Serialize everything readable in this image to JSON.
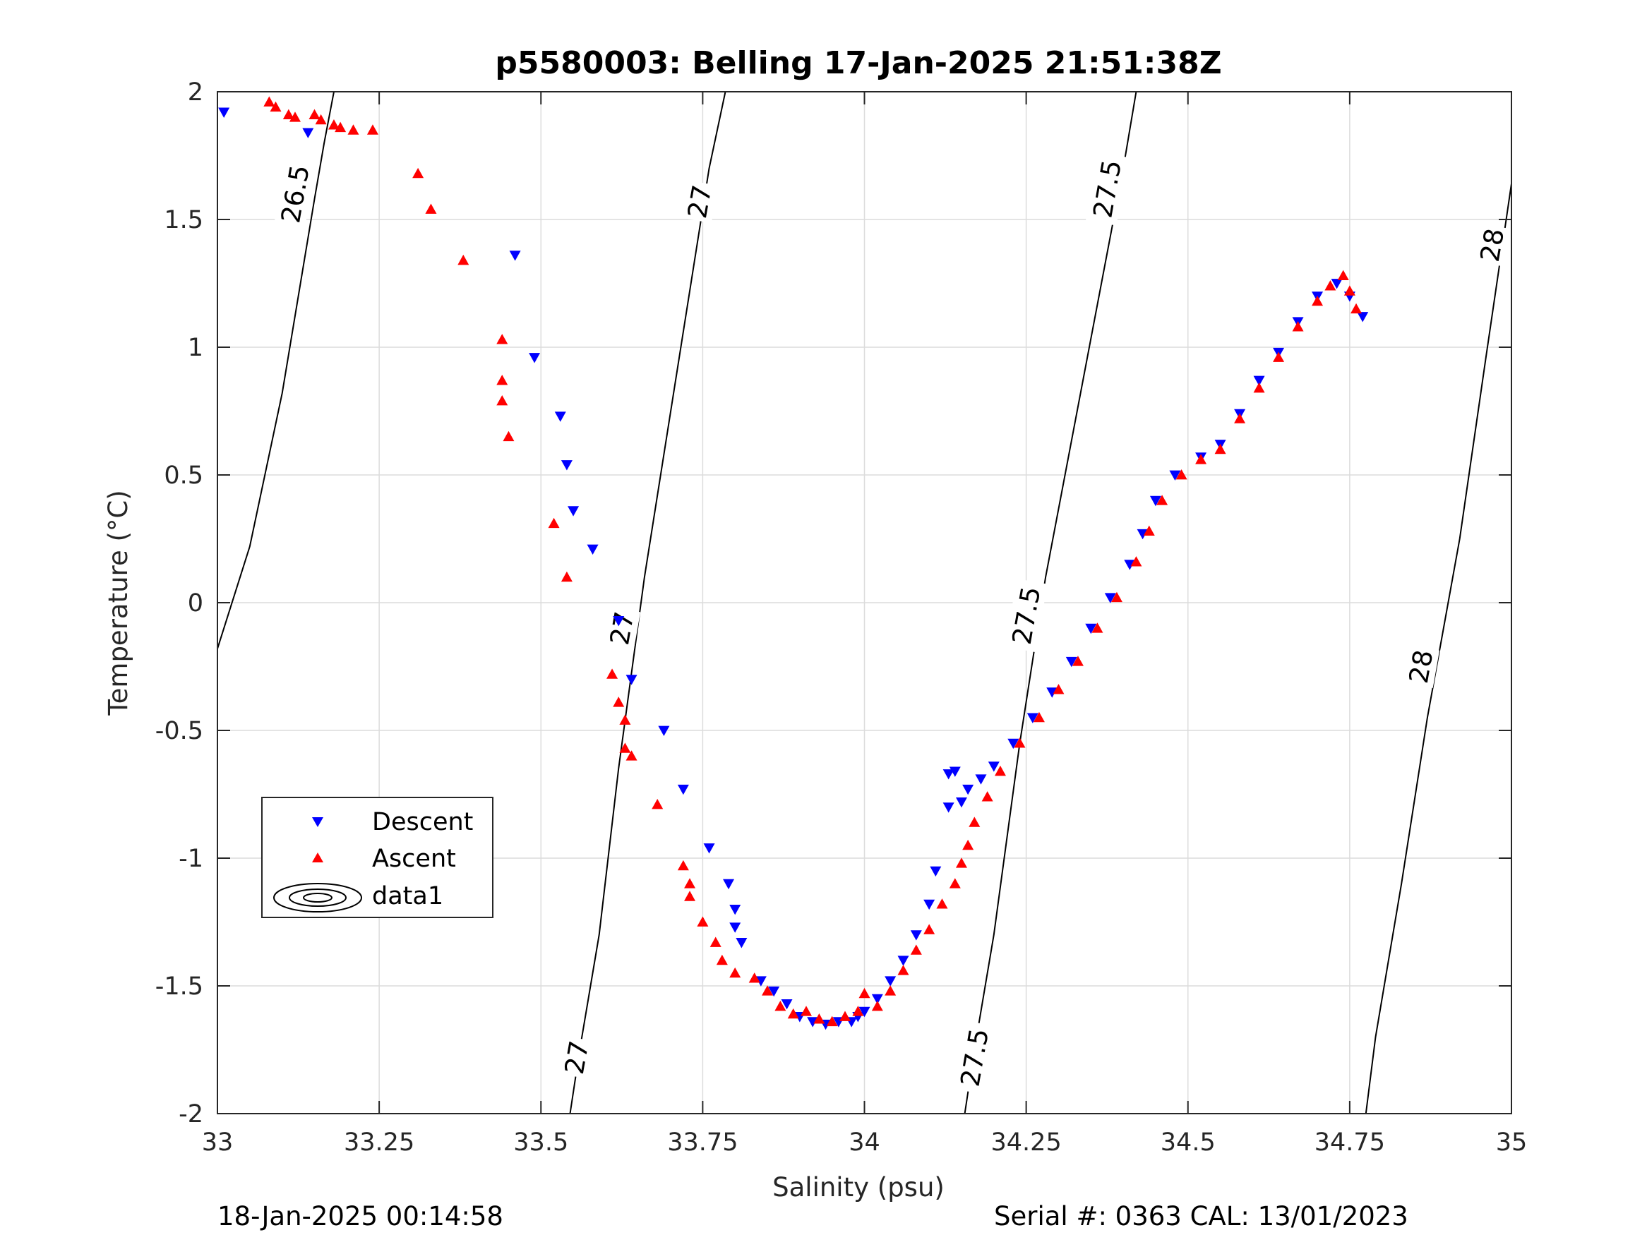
{
  "colors": {
    "descent": "#0000ff",
    "ascent": "#ff0000",
    "grid": "#dcdcdc",
    "axis": "#262626",
    "contour": "#000000"
  },
  "chart_data": {
    "type": "scatter",
    "title": "p5580003: Belling 17-Jan-2025 21:51:38Z",
    "xlabel": "Salinity (psu)",
    "ylabel": "Temperature (°C)",
    "xlim": [
      33,
      35
    ],
    "ylim": [
      -2,
      2
    ],
    "xticks": [
      33,
      33.25,
      33.5,
      33.75,
      34,
      34.25,
      34.5,
      34.75,
      35
    ],
    "xtick_labels": [
      "33",
      "33.25",
      "33.5",
      "33.75",
      "34",
      "34.25",
      "34.5",
      "34.75",
      "35"
    ],
    "yticks": [
      -2,
      -1.5,
      -1,
      -0.5,
      0,
      0.5,
      1,
      1.5,
      2
    ],
    "ytick_labels": [
      "-2",
      "-1.5",
      "-1",
      "-0.5",
      "0",
      "0.5",
      "1",
      "1.5",
      "2"
    ],
    "grid": true,
    "legend": {
      "position": "lower-left",
      "entries": [
        "Descent",
        "Ascent",
        "data1"
      ]
    },
    "series": [
      {
        "name": "Descent",
        "marker": "triangle-down",
        "points": [
          [
            33.01,
            1.92
          ],
          [
            33.14,
            1.84
          ],
          [
            33.46,
            1.36
          ],
          [
            33.49,
            0.96
          ],
          [
            33.53,
            0.73
          ],
          [
            33.54,
            0.54
          ],
          [
            33.55,
            0.36
          ],
          [
            33.58,
            0.21
          ],
          [
            33.62,
            -0.07
          ],
          [
            33.64,
            -0.3
          ],
          [
            33.69,
            -0.5
          ],
          [
            33.72,
            -0.73
          ],
          [
            33.76,
            -0.96
          ],
          [
            33.79,
            -1.1
          ],
          [
            33.8,
            -1.27
          ],
          [
            33.81,
            -1.33
          ],
          [
            33.8,
            -1.2
          ],
          [
            33.84,
            -1.48
          ],
          [
            33.86,
            -1.52
          ],
          [
            33.88,
            -1.57
          ],
          [
            33.9,
            -1.62
          ],
          [
            33.92,
            -1.64
          ],
          [
            33.94,
            -1.65
          ],
          [
            33.96,
            -1.64
          ],
          [
            33.98,
            -1.64
          ],
          [
            33.99,
            -1.62
          ],
          [
            34.0,
            -1.6
          ],
          [
            34.02,
            -1.55
          ],
          [
            34.04,
            -1.48
          ],
          [
            34.06,
            -1.4
          ],
          [
            34.08,
            -1.3
          ],
          [
            34.1,
            -1.18
          ],
          [
            34.11,
            -1.05
          ],
          [
            34.13,
            -0.67
          ],
          [
            34.14,
            -0.66
          ],
          [
            34.13,
            -0.8
          ],
          [
            34.15,
            -0.78
          ],
          [
            34.16,
            -0.73
          ],
          [
            34.18,
            -0.69
          ],
          [
            34.2,
            -0.64
          ],
          [
            34.23,
            -0.55
          ],
          [
            34.26,
            -0.45
          ],
          [
            34.29,
            -0.35
          ],
          [
            34.32,
            -0.23
          ],
          [
            34.35,
            -0.1
          ],
          [
            34.38,
            0.02
          ],
          [
            34.41,
            0.15
          ],
          [
            34.43,
            0.27
          ],
          [
            34.45,
            0.4
          ],
          [
            34.48,
            0.5
          ],
          [
            34.52,
            0.57
          ],
          [
            34.55,
            0.62
          ],
          [
            34.58,
            0.74
          ],
          [
            34.61,
            0.87
          ],
          [
            34.64,
            0.98
          ],
          [
            34.67,
            1.1
          ],
          [
            34.7,
            1.2
          ],
          [
            34.73,
            1.25
          ],
          [
            34.75,
            1.2
          ],
          [
            34.77,
            1.12
          ]
        ]
      },
      {
        "name": "Ascent",
        "marker": "triangle-up",
        "points": [
          [
            33.08,
            1.96
          ],
          [
            33.09,
            1.94
          ],
          [
            33.11,
            1.91
          ],
          [
            33.12,
            1.9
          ],
          [
            33.15,
            1.91
          ],
          [
            33.16,
            1.89
          ],
          [
            33.18,
            1.87
          ],
          [
            33.19,
            1.86
          ],
          [
            33.21,
            1.85
          ],
          [
            33.24,
            1.85
          ],
          [
            33.31,
            1.68
          ],
          [
            33.33,
            1.54
          ],
          [
            33.38,
            1.34
          ],
          [
            33.44,
            1.03
          ],
          [
            33.44,
            0.87
          ],
          [
            33.44,
            0.79
          ],
          [
            33.45,
            0.65
          ],
          [
            33.52,
            0.31
          ],
          [
            33.54,
            0.1
          ],
          [
            33.61,
            -0.28
          ],
          [
            33.62,
            -0.39
          ],
          [
            33.63,
            -0.46
          ],
          [
            33.63,
            -0.57
          ],
          [
            33.64,
            -0.6
          ],
          [
            33.68,
            -0.79
          ],
          [
            33.72,
            -1.03
          ],
          [
            33.73,
            -1.1
          ],
          [
            33.73,
            -1.15
          ],
          [
            33.75,
            -1.25
          ],
          [
            33.77,
            -1.33
          ],
          [
            33.78,
            -1.4
          ],
          [
            33.8,
            -1.45
          ],
          [
            33.83,
            -1.47
          ],
          [
            33.85,
            -1.52
          ],
          [
            33.87,
            -1.58
          ],
          [
            33.89,
            -1.61
          ],
          [
            33.91,
            -1.6
          ],
          [
            33.93,
            -1.63
          ],
          [
            33.95,
            -1.64
          ],
          [
            33.97,
            -1.62
          ],
          [
            33.99,
            -1.6
          ],
          [
            34.0,
            -1.53
          ],
          [
            34.02,
            -1.58
          ],
          [
            34.04,
            -1.52
          ],
          [
            34.06,
            -1.44
          ],
          [
            34.08,
            -1.36
          ],
          [
            34.1,
            -1.28
          ],
          [
            34.12,
            -1.18
          ],
          [
            34.14,
            -1.1
          ],
          [
            34.15,
            -1.02
          ],
          [
            34.16,
            -0.95
          ],
          [
            34.17,
            -0.86
          ],
          [
            34.19,
            -0.76
          ],
          [
            34.21,
            -0.66
          ],
          [
            34.24,
            -0.55
          ],
          [
            34.27,
            -0.45
          ],
          [
            34.3,
            -0.34
          ],
          [
            34.33,
            -0.23
          ],
          [
            34.36,
            -0.1
          ],
          [
            34.39,
            0.02
          ],
          [
            34.42,
            0.16
          ],
          [
            34.44,
            0.28
          ],
          [
            34.46,
            0.4
          ],
          [
            34.49,
            0.5
          ],
          [
            34.52,
            0.56
          ],
          [
            34.55,
            0.6
          ],
          [
            34.58,
            0.72
          ],
          [
            34.61,
            0.84
          ],
          [
            34.64,
            0.96
          ],
          [
            34.67,
            1.08
          ],
          [
            34.7,
            1.18
          ],
          [
            34.72,
            1.24
          ],
          [
            34.74,
            1.28
          ],
          [
            34.75,
            1.22
          ],
          [
            34.76,
            1.15
          ]
        ]
      }
    ],
    "contours": [
      {
        "level": "26.5",
        "label": "26.5",
        "points": [
          [
            33,
            -0.18
          ],
          [
            33.05,
            0.22
          ],
          [
            33.1,
            0.82
          ],
          [
            33.15,
            1.58
          ],
          [
            33.165,
            1.8
          ],
          [
            33.18,
            2.0
          ]
        ]
      },
      {
        "level": "27",
        "label": "27",
        "points": [
          [
            33.545,
            -2.0
          ],
          [
            33.56,
            -1.75
          ],
          [
            33.59,
            -1.3
          ],
          [
            33.62,
            -0.65
          ],
          [
            33.66,
            0.1
          ],
          [
            33.71,
            0.9
          ],
          [
            33.76,
            1.7
          ],
          [
            33.785,
            2.0
          ]
        ]
      },
      {
        "level": "27.5",
        "label": "27.5",
        "points": [
          [
            34.155,
            -2.0
          ],
          [
            34.17,
            -1.75
          ],
          [
            34.2,
            -1.3
          ],
          [
            34.24,
            -0.55
          ],
          [
            34.28,
            0.1
          ],
          [
            34.34,
            0.9
          ],
          [
            34.4,
            1.7
          ],
          [
            34.42,
            2.0
          ]
        ]
      },
      {
        "level": "28",
        "label": "28",
        "points": [
          [
            34.775,
            -2.0
          ],
          [
            34.79,
            -1.7
          ],
          [
            34.83,
            -1.1
          ],
          [
            34.87,
            -0.45
          ],
          [
            34.92,
            0.25
          ],
          [
            34.96,
            0.95
          ],
          [
            35.0,
            1.64
          ]
        ]
      }
    ],
    "contour_label_positions": [
      {
        "text": "26.5",
        "s": 33.12,
        "t": 1.6
      },
      {
        "text": "27",
        "s": 33.745,
        "t": 1.57
      },
      {
        "text": "27",
        "s": 33.625,
        "t": -0.1
      },
      {
        "text": "27",
        "s": 33.555,
        "t": -1.78
      },
      {
        "text": "27.5",
        "s": 34.375,
        "t": 1.62
      },
      {
        "text": "27.5",
        "s": 34.25,
        "t": -0.05
      },
      {
        "text": "27.5",
        "s": 34.17,
        "t": -1.78
      },
      {
        "text": "28",
        "s": 34.97,
        "t": 1.4
      },
      {
        "text": "28",
        "s": 34.86,
        "t": -0.25
      }
    ]
  },
  "footer": {
    "left": "18-Jan-2025 00:14:58",
    "right": "Serial #: 0363  CAL: 13/01/2023"
  }
}
